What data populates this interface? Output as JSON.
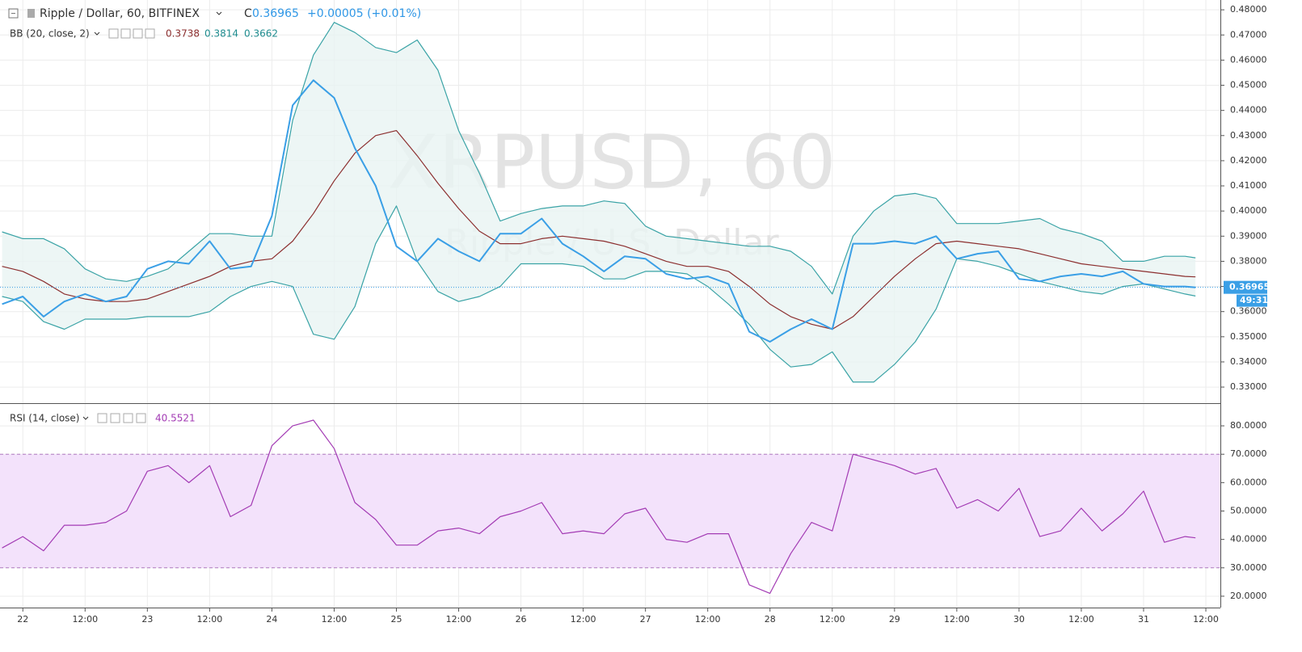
{
  "header": {
    "symbol": "Ripple / Dollar, 60, BITFINEX",
    "close_prefix": "C",
    "change": "+0.00005 (+0.01%)",
    "bb_label": "BB (20, close, 2)",
    "rsi_label": "RSI (14, close)",
    "countdown": "49:31"
  },
  "chart_data": [
    {
      "type": "line",
      "watermark": "XRPUSD, 60",
      "watermark_subtitle": "Ripple / U.S. Dollar",
      "x": [
        -4,
        0,
        4,
        8,
        12,
        16,
        20,
        24,
        28,
        32,
        36,
        40,
        44,
        48,
        52,
        56,
        60,
        64,
        68,
        72,
        76,
        80,
        84,
        88,
        92,
        96,
        100,
        104,
        108,
        112,
        116,
        120,
        124,
        128,
        132,
        136,
        140,
        144,
        148,
        152,
        156,
        160,
        164,
        168,
        172,
        176,
        180,
        184,
        188,
        192,
        196,
        200,
        204,
        208,
        212,
        216,
        220,
        224,
        226
      ],
      "xlim": [
        -4.4,
        230.8
      ],
      "ylim": [
        0.3236,
        0.4839
      ],
      "yticks": [
        {
          "value": 0.33,
          "label": "0.33000"
        },
        {
          "value": 0.34,
          "label": "0.34000"
        },
        {
          "value": 0.35,
          "label": "0.35000"
        },
        {
          "value": 0.36,
          "label": "0.36000"
        },
        {
          "value": 0.37,
          "label": "0.37000"
        },
        {
          "value": 0.38,
          "label": "0.38000"
        },
        {
          "value": 0.39,
          "label": "0.39000"
        },
        {
          "value": 0.4,
          "label": "0.40000"
        },
        {
          "value": 0.41,
          "label": "0.41000"
        },
        {
          "value": 0.42,
          "label": "0.42000"
        },
        {
          "value": 0.43,
          "label": "0.43000"
        },
        {
          "value": 0.44,
          "label": "0.44000"
        },
        {
          "value": 0.45,
          "label": "0.45000"
        },
        {
          "value": 0.46,
          "label": "0.46000"
        },
        {
          "value": 0.47,
          "label": "0.47000"
        },
        {
          "value": 0.48,
          "label": "0.48000"
        }
      ],
      "grid": true,
      "band_fill": "#e9f4f3",
      "series": [
        {
          "color": "#3aa3a6",
          "values": [
            0.3917,
            0.389,
            0.389,
            0.385,
            0.377,
            0.373,
            0.372,
            0.374,
            0.377,
            0.384,
            0.391,
            0.391,
            0.39,
            0.39,
            0.436,
            0.462,
            0.475,
            0.471,
            0.465,
            0.463,
            0.468,
            0.456,
            0.432,
            0.415,
            0.396,
            0.399,
            0.401,
            0.402,
            0.402,
            0.404,
            0.403,
            0.394,
            0.39,
            0.389,
            0.388,
            0.387,
            0.386,
            0.386,
            0.384,
            0.378,
            0.367,
            0.39,
            0.4,
            0.406,
            0.407,
            0.405,
            0.395,
            0.395,
            0.395,
            0.396,
            0.397,
            0.393,
            0.391,
            0.388,
            0.38,
            0.38,
            0.382,
            0.382,
            0.3814
          ]
        },
        {
          "color": "#8c2f2f",
          "values": [
            0.378,
            0.376,
            0.372,
            0.367,
            0.365,
            0.364,
            0.364,
            0.365,
            0.368,
            0.371,
            0.374,
            0.378,
            0.38,
            0.381,
            0.388,
            0.399,
            0.412,
            0.423,
            0.43,
            0.432,
            0.422,
            0.411,
            0.401,
            0.392,
            0.387,
            0.387,
            0.389,
            0.39,
            0.389,
            0.388,
            0.386,
            0.383,
            0.38,
            0.378,
            0.378,
            0.376,
            0.37,
            0.363,
            0.358,
            0.355,
            0.353,
            0.358,
            0.366,
            0.374,
            0.381,
            0.387,
            0.388,
            0.387,
            0.386,
            0.385,
            0.383,
            0.381,
            0.379,
            0.378,
            0.377,
            0.376,
            0.375,
            0.374,
            0.3738
          ]
        },
        {
          "color": "#3aa3a6",
          "values": [
            0.366,
            0.364,
            0.356,
            0.353,
            0.357,
            0.357,
            0.357,
            0.358,
            0.358,
            0.358,
            0.36,
            0.366,
            0.37,
            0.372,
            0.37,
            0.351,
            0.349,
            0.362,
            0.387,
            0.402,
            0.38,
            0.368,
            0.364,
            0.366,
            0.37,
            0.379,
            0.379,
            0.379,
            0.378,
            0.373,
            0.373,
            0.376,
            0.376,
            0.375,
            0.37,
            0.363,
            0.355,
            0.345,
            0.338,
            0.339,
            0.344,
            0.332,
            0.332,
            0.339,
            0.348,
            0.361,
            0.381,
            0.38,
            0.378,
            0.375,
            0.372,
            0.37,
            0.368,
            0.367,
            0.37,
            0.371,
            0.369,
            0.367,
            0.3662
          ]
        },
        {
          "color": "#3a9fe6",
          "values": [
            0.363,
            0.366,
            0.358,
            0.364,
            0.367,
            0.364,
            0.366,
            0.377,
            0.38,
            0.379,
            0.388,
            0.377,
            0.378,
            0.398,
            0.442,
            0.452,
            0.445,
            0.425,
            0.41,
            0.386,
            0.38,
            0.389,
            0.384,
            0.38,
            0.391,
            0.391,
            0.397,
            0.387,
            0.382,
            0.376,
            0.382,
            0.381,
            0.375,
            0.373,
            0.374,
            0.371,
            0.352,
            0.348,
            0.353,
            0.357,
            0.353,
            0.387,
            0.387,
            0.388,
            0.387,
            0.39,
            0.381,
            0.383,
            0.384,
            0.373,
            0.372,
            0.374,
            0.375,
            0.374,
            0.376,
            0.371,
            0.37,
            0.37,
            0.36965
          ]
        }
      ]
    },
    {
      "type": "line",
      "x": [
        -4,
        0,
        4,
        8,
        12,
        16,
        20,
        24,
        28,
        32,
        36,
        40,
        44,
        48,
        52,
        56,
        60,
        64,
        68,
        72,
        76,
        80,
        84,
        88,
        92,
        96,
        100,
        104,
        108,
        112,
        116,
        120,
        124,
        128,
        132,
        136,
        140,
        144,
        148,
        152,
        156,
        160,
        164,
        168,
        172,
        176,
        180,
        184,
        188,
        192,
        196,
        200,
        204,
        208,
        212,
        216,
        220,
        224,
        226
      ],
      "xlim": [
        -4.4,
        230.8
      ],
      "xticks": [
        {
          "value": 0,
          "label": "22"
        },
        {
          "value": 12,
          "label": "12:00"
        },
        {
          "value": 24,
          "label": "23"
        },
        {
          "value": 36,
          "label": "12:00"
        },
        {
          "value": 48,
          "label": "24"
        },
        {
          "value": 60,
          "label": "12:00"
        },
        {
          "value": 72,
          "label": "25"
        },
        {
          "value": 84,
          "label": "12:00"
        },
        {
          "value": 96,
          "label": "26"
        },
        {
          "value": 108,
          "label": "12:00"
        },
        {
          "value": 120,
          "label": "27"
        },
        {
          "value": 132,
          "label": "12:00"
        },
        {
          "value": 144,
          "label": "28"
        },
        {
          "value": 156,
          "label": "12:00"
        },
        {
          "value": 168,
          "label": "29"
        },
        {
          "value": 180,
          "label": "12:00"
        },
        {
          "value": 192,
          "label": "30"
        },
        {
          "value": 204,
          "label": "12:00"
        },
        {
          "value": 216,
          "label": "31"
        },
        {
          "value": 228,
          "label": "12:00"
        }
      ],
      "ylim": [
        16,
        87.7
      ],
      "yticks": [
        {
          "value": 20,
          "label": "20.0000"
        },
        {
          "value": 30,
          "label": "30.0000"
        },
        {
          "value": 40,
          "label": "40.0000"
        },
        {
          "value": 50,
          "label": "50.0000"
        },
        {
          "value": 60,
          "label": "60.0000"
        },
        {
          "value": 70,
          "label": "70.0000"
        },
        {
          "value": 80,
          "label": "80.0000"
        }
      ],
      "grid": true,
      "band": [
        30,
        70
      ],
      "band_color": "#f3e2fb",
      "series": [
        {
          "color": "#a33bb4",
          "values": [
            37,
            41,
            36,
            45,
            45,
            46,
            50,
            64,
            66,
            60,
            66,
            48,
            52,
            73,
            80,
            82,
            72,
            53,
            47,
            38,
            38,
            43,
            44,
            42,
            48,
            50,
            53,
            42,
            43,
            42,
            49,
            51,
            40,
            39,
            42,
            42,
            24,
            21,
            35,
            46,
            43,
            70,
            68,
            66,
            63,
            65,
            51,
            54,
            50,
            58,
            41,
            43,
            51,
            43,
            49,
            57,
            39,
            41,
            40.5521
          ]
        }
      ]
    }
  ]
}
